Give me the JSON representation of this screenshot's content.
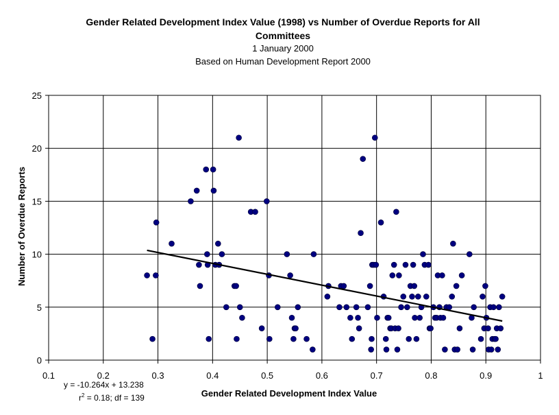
{
  "chart_data": {
    "type": "scatter",
    "title": "Gender Related Development Index Value (1998) vs Number of Overdue Reports for All Committees",
    "subtitle": [
      "1 January 2000",
      "Based on Human Development Report 2000"
    ],
    "xlabel": "Gender Related Development Index Value",
    "ylabel": "Number of Overdue Reports",
    "xlim": [
      0.1,
      1.0
    ],
    "ylim": [
      0,
      25
    ],
    "xticks": [
      "0.1",
      "0.2",
      "0.3",
      "0.4",
      "0.5",
      "0.6",
      "0.7",
      "0.8",
      "0.9",
      "1"
    ],
    "yticks": [
      "0",
      "5",
      "10",
      "15",
      "20",
      "25"
    ],
    "grid": true,
    "marker_color": "#000080",
    "trendline": {
      "slope": -10.264,
      "intercept": 13.238,
      "x_range": [
        0.28,
        0.93
      ],
      "equation_label": "y = -10.264x + 13.238",
      "stats_prefix": "r",
      "stats_sup": "2",
      "stats_suffix": " = 0.18; df = 139"
    },
    "points": [
      [
        0.28,
        8
      ],
      [
        0.29,
        2
      ],
      [
        0.296,
        8
      ],
      [
        0.297,
        13
      ],
      [
        0.325,
        11
      ],
      [
        0.36,
        15
      ],
      [
        0.371,
        16
      ],
      [
        0.375,
        9
      ],
      [
        0.377,
        7
      ],
      [
        0.388,
        18
      ],
      [
        0.39,
        10
      ],
      [
        0.391,
        9
      ],
      [
        0.393,
        2
      ],
      [
        0.401,
        18
      ],
      [
        0.402,
        16
      ],
      [
        0.405,
        9
      ],
      [
        0.41,
        11
      ],
      [
        0.412,
        9
      ],
      [
        0.417,
        10
      ],
      [
        0.425,
        5
      ],
      [
        0.44,
        7
      ],
      [
        0.443,
        7
      ],
      [
        0.444,
        2
      ],
      [
        0.448,
        21
      ],
      [
        0.45,
        5
      ],
      [
        0.454,
        4
      ],
      [
        0.47,
        14
      ],
      [
        0.478,
        14
      ],
      [
        0.49,
        3
      ],
      [
        0.499,
        15
      ],
      [
        0.503,
        8
      ],
      [
        0.504,
        2
      ],
      [
        0.519,
        5
      ],
      [
        0.536,
        10
      ],
      [
        0.542,
        8
      ],
      [
        0.545,
        4
      ],
      [
        0.548,
        2
      ],
      [
        0.55,
        3
      ],
      [
        0.552,
        3
      ],
      [
        0.556,
        5
      ],
      [
        0.572,
        2
      ],
      [
        0.583,
        1
      ],
      [
        0.585,
        10
      ],
      [
        0.61,
        6
      ],
      [
        0.612,
        7
      ],
      [
        0.632,
        5
      ],
      [
        0.635,
        7
      ],
      [
        0.64,
        7
      ],
      [
        0.645,
        5
      ],
      [
        0.652,
        4
      ],
      [
        0.655,
        2
      ],
      [
        0.663,
        5
      ],
      [
        0.666,
        4
      ],
      [
        0.668,
        3
      ],
      [
        0.671,
        12
      ],
      [
        0.675,
        19
      ],
      [
        0.684,
        5
      ],
      [
        0.688,
        7
      ],
      [
        0.69,
        1
      ],
      [
        0.691,
        2
      ],
      [
        0.692,
        9
      ],
      [
        0.695,
        9
      ],
      [
        0.697,
        21
      ],
      [
        0.699,
        9
      ],
      [
        0.701,
        4
      ],
      [
        0.708,
        13
      ],
      [
        0.713,
        6
      ],
      [
        0.717,
        2
      ],
      [
        0.718,
        1
      ],
      [
        0.72,
        4
      ],
      [
        0.722,
        4
      ],
      [
        0.725,
        3
      ],
      [
        0.727,
        3
      ],
      [
        0.729,
        8
      ],
      [
        0.732,
        9
      ],
      [
        0.734,
        3
      ],
      [
        0.736,
        14
      ],
      [
        0.738,
        1
      ],
      [
        0.74,
        3
      ],
      [
        0.741,
        8
      ],
      [
        0.745,
        5
      ],
      [
        0.749,
        6
      ],
      [
        0.753,
        9
      ],
      [
        0.756,
        5
      ],
      [
        0.759,
        2
      ],
      [
        0.762,
        7
      ],
      [
        0.765,
        6
      ],
      [
        0.767,
        9
      ],
      [
        0.769,
        7
      ],
      [
        0.77,
        4
      ],
      [
        0.773,
        2
      ],
      [
        0.776,
        6
      ],
      [
        0.779,
        4
      ],
      [
        0.782,
        5
      ],
      [
        0.785,
        10
      ],
      [
        0.788,
        9
      ],
      [
        0.791,
        6
      ],
      [
        0.795,
        9
      ],
      [
        0.797,
        3
      ],
      [
        0.799,
        3
      ],
      [
        0.804,
        5
      ],
      [
        0.807,
        4
      ],
      [
        0.81,
        4
      ],
      [
        0.812,
        8
      ],
      [
        0.815,
        5
      ],
      [
        0.817,
        4
      ],
      [
        0.82,
        8
      ],
      [
        0.822,
        4
      ],
      [
        0.825,
        1
      ],
      [
        0.828,
        5
      ],
      [
        0.833,
        5
      ],
      [
        0.838,
        6
      ],
      [
        0.84,
        11
      ],
      [
        0.843,
        1
      ],
      [
        0.846,
        7
      ],
      [
        0.848,
        1
      ],
      [
        0.852,
        3
      ],
      [
        0.856,
        8
      ],
      [
        0.87,
        10
      ],
      [
        0.874,
        4
      ],
      [
        0.876,
        1
      ],
      [
        0.878,
        5
      ],
      [
        0.891,
        2
      ],
      [
        0.894,
        6
      ],
      [
        0.897,
        3
      ],
      [
        0.899,
        7
      ],
      [
        0.901,
        4
      ],
      [
        0.904,
        3
      ],
      [
        0.905,
        1
      ],
      [
        0.908,
        5
      ],
      [
        0.91,
        1
      ],
      [
        0.912,
        2
      ],
      [
        0.914,
        5
      ],
      [
        0.916,
        2
      ],
      [
        0.918,
        2
      ],
      [
        0.92,
        3
      ],
      [
        0.922,
        1
      ],
      [
        0.924,
        5
      ],
      [
        0.927,
        3
      ],
      [
        0.93,
        6
      ]
    ]
  }
}
